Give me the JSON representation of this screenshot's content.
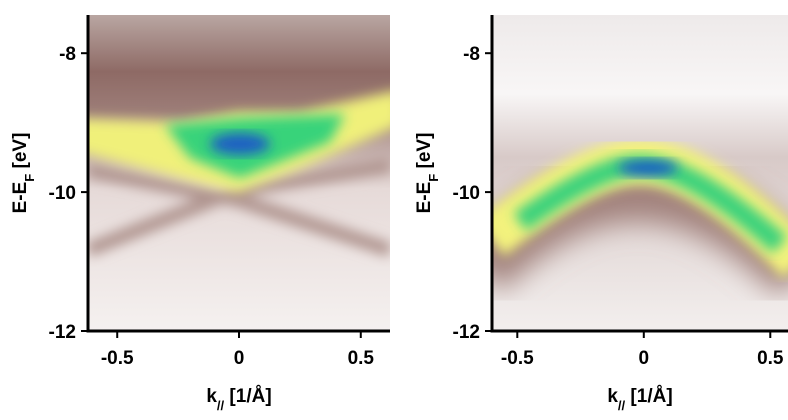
{
  "chart_data": [
    {
      "type": "image",
      "xlabel": [
        "k",
        "//",
        " [1/Å]"
      ],
      "ylabel": [
        "E-E",
        "F",
        " [eV]"
      ],
      "xlim": [
        -0.62,
        0.62
      ],
      "ylim": [
        -12,
        -7.45
      ],
      "xticks": [
        {
          "value": -0.5,
          "label": "-0.5"
        },
        0,
        {
          "value": 0.5,
          "label": "0.5"
        }
      ],
      "yticks": [
        -8,
        -10,
        -12
      ]
    },
    {
      "type": "image",
      "xlabel": [
        "k",
        "//",
        " [1/Å]"
      ],
      "ylabel": [
        "E-E",
        "F",
        " [eV]"
      ],
      "xlim": [
        -0.6,
        0.57
      ],
      "ylim": [
        -12,
        -7.45
      ],
      "xticks": [
        {
          "value": -0.5,
          "label": "-0.5"
        },
        0,
        {
          "value": 0.5,
          "label": "0.5"
        }
      ],
      "yticks": [
        -8,
        -10,
        -12
      ]
    }
  ]
}
